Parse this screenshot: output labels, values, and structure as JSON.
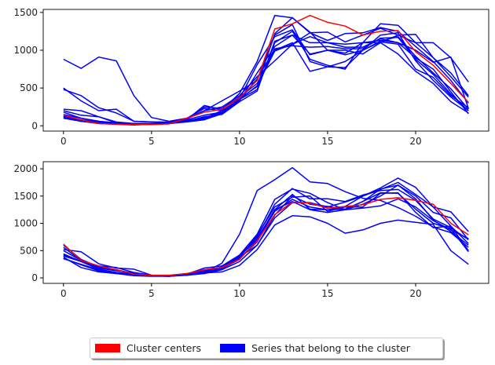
{
  "chart_data": [
    {
      "type": "line",
      "x": [
        0,
        1,
        2,
        3,
        4,
        5,
        6,
        7,
        8,
        9,
        10,
        11,
        12,
        13,
        14,
        15,
        16,
        17,
        18,
        19,
        20,
        21,
        22,
        23
      ],
      "xlim": [
        -1.15,
        24.15
      ],
      "ylim": [
        -70,
        1540
      ],
      "xticks": [
        0,
        5,
        10,
        15,
        20
      ],
      "yticks": [
        0,
        500,
        1000,
        1500
      ],
      "grid": false,
      "center": {
        "name": "Cluster centers",
        "color": "#ff0000",
        "values": [
          140,
          80,
          30,
          20,
          15,
          15,
          25,
          100,
          180,
          220,
          370,
          600,
          1280,
          1350,
          1460,
          1370,
          1320,
          1200,
          1250,
          1260,
          980,
          800,
          560,
          310
        ]
      },
      "series": [
        {
          "color": "#0000ff",
          "values": [
            880,
            760,
            910,
            860,
            400,
            110,
            60,
            100,
            200,
            250,
            400,
            650,
            860,
            1080,
            1230,
            1240,
            1110,
            1200,
            1290,
            1200,
            1100,
            1100,
            900,
            580
          ]
        },
        {
          "color": "#0000ff",
          "values": [
            500,
            330,
            200,
            220,
            60,
            50,
            40,
            80,
            270,
            210,
            430,
            850,
            1460,
            1430,
            1240,
            1000,
            1000,
            950,
            1100,
            1200,
            1210,
            900,
            700,
            400
          ]
        },
        {
          "color": "#0000ff",
          "values": [
            480,
            400,
            240,
            170,
            60,
            50,
            50,
            90,
            200,
            330,
            460,
            600,
            1200,
            1340,
            850,
            780,
            770,
            1000,
            1110,
            1080,
            750,
            640,
            400,
            240
          ]
        },
        {
          "color": "#0000ff",
          "values": [
            220,
            200,
            120,
            40,
            20,
            20,
            30,
            90,
            250,
            230,
            380,
            560,
            1000,
            1100,
            720,
            780,
            850,
            1000,
            1200,
            1230,
            860,
            600,
            380,
            200
          ]
        },
        {
          "color": "#0000ff",
          "values": [
            200,
            140,
            120,
            50,
            30,
            30,
            40,
            100,
            230,
            200,
            350,
            480,
            1100,
            1250,
            880,
            800,
            750,
            1100,
            1350,
            1330,
            1100,
            900,
            650,
            380
          ]
        },
        {
          "color": "#0000ff",
          "values": [
            180,
            100,
            60,
            40,
            30,
            30,
            40,
            80,
            140,
            180,
            360,
            520,
            1220,
            1430,
            1230,
            1130,
            1220,
            1230,
            1300,
            1250,
            1050,
            850,
            600,
            300
          ]
        },
        {
          "color": "#0000ff",
          "values": [
            150,
            100,
            60,
            30,
            20,
            20,
            30,
            60,
            120,
            150,
            320,
            460,
            1120,
            1200,
            1100,
            1100,
            1080,
            1100,
            1130,
            1100,
            1000,
            840,
            910,
            230
          ]
        },
        {
          "color": "#0000ff",
          "values": [
            120,
            80,
            50,
            30,
            20,
            30,
            40,
            70,
            100,
            200,
            340,
            620,
            1020,
            1060,
            1040,
            1050,
            1020,
            1020,
            1160,
            1170,
            880,
            680,
            420,
            200
          ]
        },
        {
          "color": "#0000ff",
          "values": [
            110,
            60,
            40,
            20,
            20,
            20,
            30,
            60,
            90,
            170,
            330,
            700,
            1050,
            1200,
            950,
            1000,
            960,
            1100,
            1100,
            950,
            720,
            560,
            320,
            170
          ]
        },
        {
          "color": "#0000ff",
          "values": [
            100,
            60,
            30,
            20,
            10,
            20,
            30,
            50,
            80,
            160,
            350,
            530,
            990,
            1080,
            1180,
            1100,
            1040,
            1040,
            1150,
            1100,
            900,
            750,
            450,
            160
          ]
        },
        {
          "color": "#0000ff",
          "values": [
            130,
            70,
            40,
            20,
            20,
            20,
            30,
            60,
            110,
            170,
            360,
            810,
            1180,
            1270,
            940,
            1000,
            940,
            1000,
            1120,
            1180,
            920,
            700,
            490,
            220
          ]
        }
      ]
    },
    {
      "type": "line",
      "x": [
        0,
        1,
        2,
        3,
        4,
        5,
        6,
        7,
        8,
        9,
        10,
        11,
        12,
        13,
        14,
        15,
        16,
        17,
        18,
        19,
        20,
        21,
        22,
        23
      ],
      "xlim": [
        -1.15,
        24.15
      ],
      "ylim": [
        -100,
        2130
      ],
      "xticks": [
        0,
        5,
        10,
        15,
        20
      ],
      "yticks": [
        0,
        500,
        1000,
        1500,
        2000
      ],
      "grid": false,
      "center": {
        "name": "Cluster centers",
        "color": "#ff0000",
        "values": [
          620,
          320,
          220,
          150,
          70,
          50,
          50,
          80,
          150,
          190,
          340,
          680,
          1160,
          1390,
          1370,
          1280,
          1310,
          1340,
          1440,
          1470,
          1420,
          1350,
          1000,
          790
        ]
      },
      "series": [
        {
          "color": "#0000ff",
          "values": [
            380,
            190,
            110,
            80,
            80,
            40,
            30,
            60,
            100,
            270,
            800,
            1600,
            1800,
            2020,
            1760,
            1730,
            1580,
            1460,
            1420,
            1290,
            1130,
            930,
            830,
            560
          ]
        },
        {
          "color": "#0000ff",
          "values": [
            400,
            300,
            180,
            130,
            90,
            50,
            40,
            60,
            100,
            160,
            380,
            600,
            1100,
            1380,
            1380,
            1300,
            1390,
            1500,
            1650,
            1830,
            1660,
            1300,
            1210,
            850
          ]
        },
        {
          "color": "#0000ff",
          "values": [
            520,
            480,
            260,
            180,
            160,
            50,
            40,
            50,
            90,
            110,
            230,
            520,
            970,
            1140,
            1120,
            1000,
            820,
            880,
            1000,
            1060,
            1020,
            980,
            500,
            250
          ]
        },
        {
          "color": "#0000ff",
          "values": [
            560,
            320,
            220,
            190,
            100,
            50,
            40,
            70,
            180,
            220,
            420,
            800,
            1440,
            1630,
            1550,
            1380,
            1250,
            1350,
            1500,
            1700,
            1500,
            1200,
            1100,
            700
          ]
        },
        {
          "color": "#0000ff",
          "values": [
            350,
            250,
            150,
            100,
            70,
            40,
            30,
            60,
            140,
            180,
            390,
            720,
            1250,
            1530,
            1260,
            1250,
            1310,
            1500,
            1620,
            1750,
            1530,
            1300,
            950,
            630
          ]
        },
        {
          "color": "#0000ff",
          "values": [
            420,
            300,
            180,
            150,
            80,
            40,
            40,
            80,
            130,
            200,
            400,
            750,
            1350,
            1640,
            1450,
            1450,
            1400,
            1520,
            1600,
            1620,
            1420,
            1080,
            920,
            700
          ]
        },
        {
          "color": "#0000ff",
          "values": [
            600,
            340,
            200,
            150,
            60,
            40,
            40,
            70,
            120,
            170,
            370,
            780,
            1300,
            1480,
            1500,
            1220,
            1300,
            1300,
            1550,
            1560,
            1200,
            920,
            950,
            500
          ]
        },
        {
          "color": "#0000ff",
          "values": [
            440,
            300,
            160,
            100,
            60,
            40,
            40,
            60,
            130,
            170,
            340,
            700,
            1220,
            1440,
            1300,
            1250,
            1260,
            1400,
            1630,
            1700,
            1450,
            1060,
            850,
            600
          ]
        },
        {
          "color": "#0000ff",
          "values": [
            500,
            320,
            200,
            140,
            70,
            40,
            40,
            70,
            150,
            190,
            360,
            660,
            1250,
            1400,
            1250,
            1200,
            1250,
            1280,
            1320,
            1450,
            1300,
            1050,
            880,
            720
          ]
        },
        {
          "color": "#0000ff",
          "values": [
            360,
            240,
            130,
            80,
            40,
            30,
            30,
            50,
            80,
            150,
            300,
            600,
            1150,
            1500,
            1350,
            1310,
            1260,
            1400,
            1560,
            1550,
            1260,
            1000,
            900,
            480
          ]
        }
      ]
    }
  ],
  "legend": {
    "placement": "bottom-center",
    "items": [
      {
        "label": "Cluster centers",
        "color": "#ff0000"
      },
      {
        "label": "Series that belong to the cluster",
        "color": "#0000ff"
      }
    ]
  }
}
